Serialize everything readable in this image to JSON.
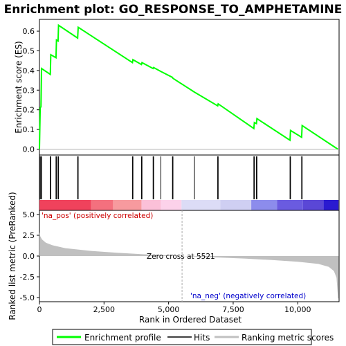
{
  "chart_data": {
    "type": "line",
    "title": "Enrichment plot: GO_RESPONSE_TO_AMPHETAMINE",
    "xlabel": "Rank in Ordered Dataset",
    "top_ylabel": "Enrichment score (ES)",
    "bottom_ylabel": "Ranked list metric (PreRanked)",
    "xlim": [
      0,
      11600
    ],
    "x_ticks": [
      0,
      2500,
      5000,
      7500,
      10000
    ],
    "x_tick_labels": [
      "0",
      "2,500",
      "5,000",
      "7,500",
      "10,000"
    ],
    "es_ylim": [
      -0.03,
      0.66
    ],
    "es_ticks": [
      0.0,
      0.1,
      0.2,
      0.3,
      0.4,
      0.5,
      0.6
    ],
    "es_tick_labels": [
      "0.0",
      "0.1",
      "0.2",
      "0.3",
      "0.4",
      "0.5",
      "0.6"
    ],
    "metric_ylim": [
      -5.5,
      5.5
    ],
    "metric_ticks": [
      5.0,
      2.5,
      0.0,
      -2.5,
      -5.0
    ],
    "metric_tick_labels": [
      "5.0",
      "2.5",
      "0.0",
      "-2.5",
      "-5.0"
    ],
    "enrichment_profile": {
      "name": "Enrichment profile",
      "color": "#00ff00",
      "points": [
        [
          0,
          0.0
        ],
        [
          30,
          0.21
        ],
        [
          60,
          0.215
        ],
        [
          80,
          0.41
        ],
        [
          420,
          0.38
        ],
        [
          440,
          0.48
        ],
        [
          640,
          0.465
        ],
        [
          660,
          0.555
        ],
        [
          720,
          0.55
        ],
        [
          740,
          0.63
        ],
        [
          1480,
          0.565
        ],
        [
          1500,
          0.62
        ],
        [
          3600,
          0.44
        ],
        [
          3620,
          0.455
        ],
        [
          3950,
          0.43
        ],
        [
          3970,
          0.44
        ],
        [
          4400,
          0.41
        ],
        [
          4420,
          0.415
        ],
        [
          4700,
          0.395
        ],
        [
          5150,
          0.365
        ],
        [
          5170,
          0.36
        ],
        [
          6000,
          0.29
        ],
        [
          6900,
          0.22
        ],
        [
          6920,
          0.23
        ],
        [
          8300,
          0.105
        ],
        [
          8320,
          0.135
        ],
        [
          8400,
          0.13
        ],
        [
          8420,
          0.155
        ],
        [
          9700,
          0.045
        ],
        [
          9720,
          0.095
        ],
        [
          10150,
          0.06
        ],
        [
          10170,
          0.12
        ],
        [
          11550,
          0.0
        ]
      ]
    },
    "hits": [
      30,
      60,
      80,
      420,
      440,
      640,
      660,
      720,
      740,
      1480,
      1500,
      3600,
      3620,
      3950,
      3970,
      4400,
      4420,
      4700,
      5150,
      5170,
      6000,
      6900,
      6920,
      8300,
      8320,
      8400,
      8420,
      9700,
      9720,
      10150,
      10170
    ],
    "ranking_metric": {
      "name": "Ranking metric scores",
      "color": "#c0c0c0",
      "points": [
        [
          0,
          2.9
        ],
        [
          30,
          2.4
        ],
        [
          100,
          2.0
        ],
        [
          250,
          1.6
        ],
        [
          500,
          1.3
        ],
        [
          1000,
          0.95
        ],
        [
          2000,
          0.62
        ],
        [
          3000,
          0.4
        ],
        [
          4000,
          0.22
        ],
        [
          5000,
          0.08
        ],
        [
          5521,
          0.0
        ],
        [
          6000,
          -0.06
        ],
        [
          7000,
          -0.18
        ],
        [
          8000,
          -0.32
        ],
        [
          9000,
          -0.48
        ],
        [
          10000,
          -0.68
        ],
        [
          10800,
          -0.95
        ],
        [
          11200,
          -1.3
        ],
        [
          11400,
          -1.8
        ],
        [
          11500,
          -2.6
        ],
        [
          11560,
          -5.1
        ],
        [
          11580,
          -5.1
        ]
      ]
    },
    "zero_cross_label": "Zero cross at 5521",
    "zero_cross": 5521,
    "pos_label": "'na_pos' (positively correlated)",
    "neg_label": "'na_neg' (negatively correlated)",
    "pos_label_color": "#cc0000",
    "neg_label_color": "#0000cc",
    "colorbar_segments": [
      {
        "from": 0,
        "to": 2000,
        "color": "#f0425c"
      },
      {
        "from": 2000,
        "to": 2850,
        "color": "#f4707e"
      },
      {
        "from": 2850,
        "to": 3950,
        "color": "#f79a9e"
      },
      {
        "from": 3950,
        "to": 4700,
        "color": "#fbc0d8"
      },
      {
        "from": 4700,
        "to": 5500,
        "color": "#fcd2ea"
      },
      {
        "from": 5500,
        "to": 7000,
        "color": "#dcdcf6"
      },
      {
        "from": 7000,
        "to": 8200,
        "color": "#cfcff2"
      },
      {
        "from": 8200,
        "to": 9200,
        "color": "#8c8cec"
      },
      {
        "from": 9200,
        "to": 10200,
        "color": "#6a5be0"
      },
      {
        "from": 10200,
        "to": 11000,
        "color": "#5a47d6"
      },
      {
        "from": 11000,
        "to": 11580,
        "color": "#2a1ad0"
      }
    ]
  },
  "legend": {
    "items": [
      {
        "label": "Enrichment profile",
        "color": "#00ff00"
      },
      {
        "label": "Hits",
        "color": "#000000"
      },
      {
        "label": "Ranking metric scores",
        "color": "#c0c0c0"
      }
    ]
  }
}
